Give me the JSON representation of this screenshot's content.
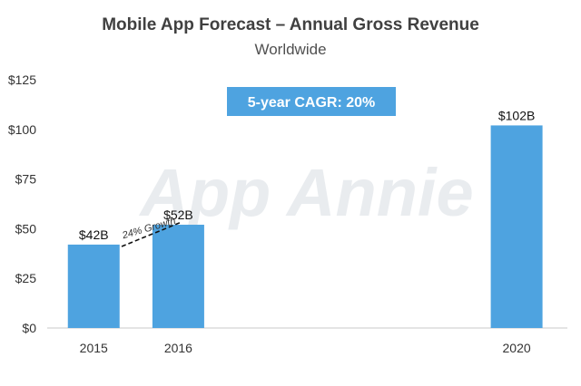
{
  "chart_data": {
    "type": "bar",
    "title": "Mobile App Forecast – Annual Gross Revenue",
    "subtitle": "Worldwide",
    "categories": [
      "2015",
      "2016",
      "2020"
    ],
    "values": [
      42,
      52,
      102
    ],
    "data_labels": [
      "$42B",
      "$52B",
      "$102B"
    ],
    "y_ticks": [
      "$0",
      "$25",
      "$50",
      "$75",
      "$100",
      "$125"
    ],
    "ylim": [
      0,
      125
    ],
    "year_positions": [
      2015,
      2016,
      2020
    ],
    "xlim": [
      2014.45,
      2020.6
    ],
    "bar_color": "#4ea3e0",
    "grid": false,
    "annotations": {
      "callout": "5-year CAGR: 20%",
      "callout_color": "#4ea3e0",
      "growth": "24% Growth"
    },
    "watermark": "App Annie"
  }
}
